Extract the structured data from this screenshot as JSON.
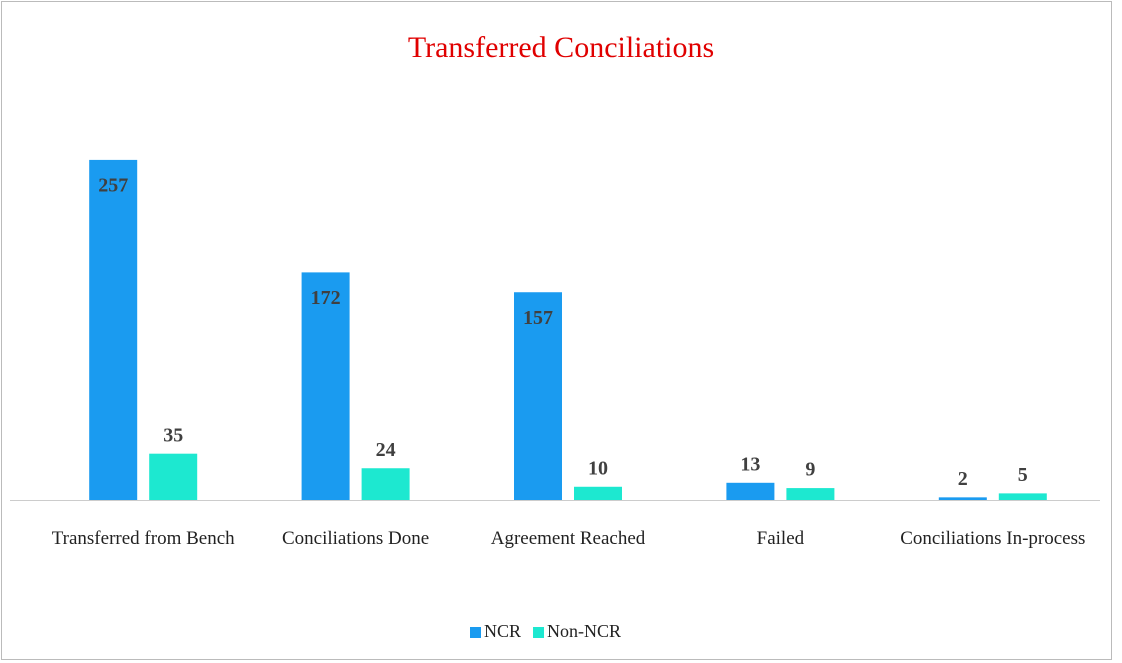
{
  "chart_data": {
    "type": "bar",
    "title": "Transferred Conciliations",
    "categories": [
      "Transferred from Bench",
      "Conciliations Done",
      "Agreement Reached",
      "Failed",
      "Conciliations In-process"
    ],
    "series": [
      {
        "name": "NCR",
        "color": "#1a9bf0",
        "values": [
          257,
          172,
          157,
          13,
          2
        ]
      },
      {
        "name": "Non-NCR",
        "color": "#1de8d0",
        "values": [
          35,
          24,
          10,
          9,
          5
        ]
      }
    ],
    "ylim": [
      0,
      300
    ],
    "legend": "bottom"
  }
}
